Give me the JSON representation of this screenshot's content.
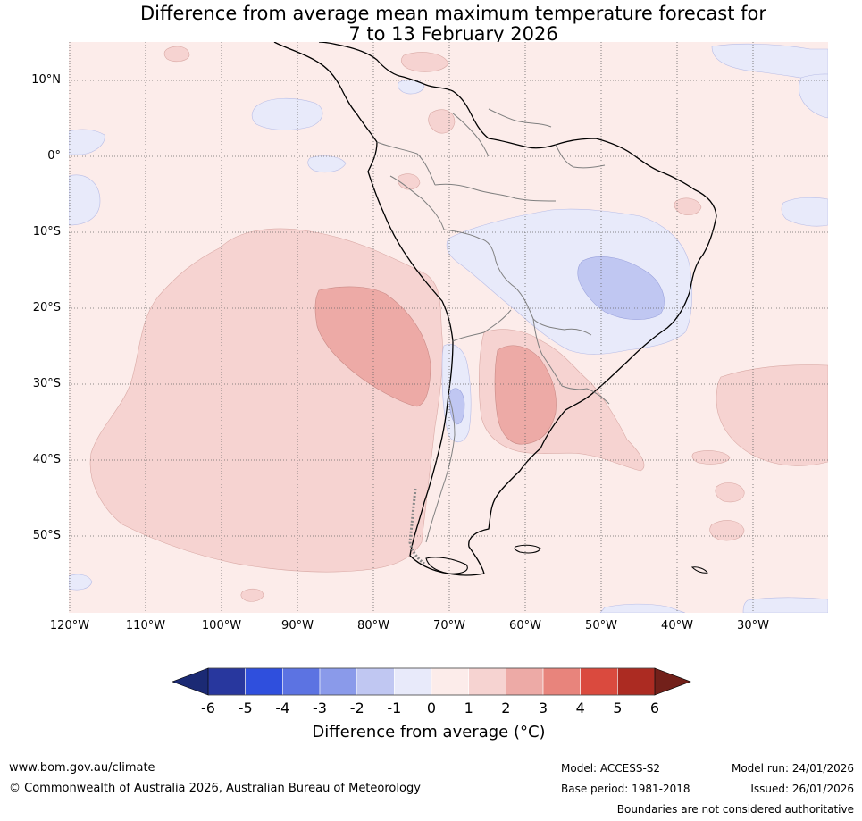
{
  "title": {
    "line1": "Difference from average mean maximum temperature forecast for",
    "line2": "7 to 13 February 2026"
  },
  "map": {
    "region": "South America",
    "lat_labels": [
      "10°N",
      "0°",
      "10°S",
      "20°S",
      "30°S",
      "40°S",
      "50°S"
    ],
    "lon_labels": [
      "120°W",
      "110°W",
      "100°W",
      "90°W",
      "80°W",
      "70°W",
      "60°W",
      "50°W",
      "40°W",
      "30°W"
    ]
  },
  "colorbar": {
    "ticks": [
      "-6",
      "-5",
      "-4",
      "-3",
      "-2",
      "-1",
      "0",
      "1",
      "2",
      "3",
      "4",
      "5",
      "6"
    ],
    "colors": [
      "#28379e",
      "#2f4fdd",
      "#5c73e2",
      "#8a9aea",
      "#c0c7f2",
      "#e8eafa",
      "#fcecea",
      "#f6d3d1",
      "#edaaa6",
      "#e8847c",
      "#da4a3e",
      "#ac2b22"
    ],
    "under_color": "#1b2a74",
    "over_color": "#72201a",
    "label": "Difference from average (°C)"
  },
  "footer": {
    "website": "www.bom.gov.au/climate",
    "copyright": "© Commonwealth of Australia 2026, Australian Bureau of Meteorology",
    "model": "Model: ACCESS-S2",
    "base_period": "Base period: 1981-2018",
    "model_run": "Model run: 24/01/2026",
    "issued": "Issued: 26/01/2026",
    "disclaimer": "Boundaries are not considered authoritative"
  }
}
